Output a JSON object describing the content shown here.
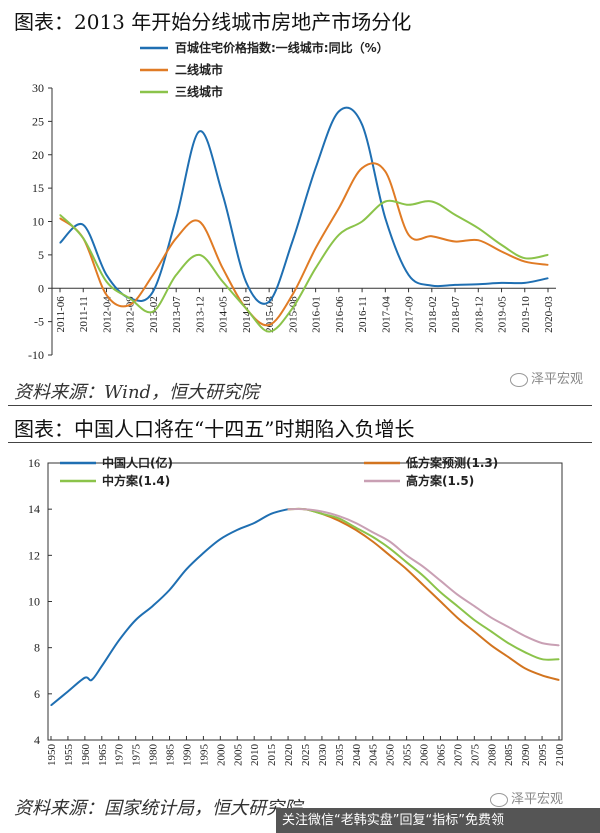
{
  "chart_data": [
    {
      "type": "line",
      "title": "图表：2013 年开始分线城市房地产市场分化",
      "xlabel": "",
      "ylabel": "",
      "ylim": [
        -10,
        30
      ],
      "yticks": [
        -10,
        -5,
        0,
        5,
        10,
        15,
        20,
        25,
        30
      ],
      "legend_position": "top-center",
      "x": [
        "2011-06",
        "2011-11",
        "2012-04",
        "2012-09",
        "2013-02",
        "2013-07",
        "2013-12",
        "2014-05",
        "2014-10",
        "2015-03",
        "2015-08",
        "2016-01",
        "2016-06",
        "2016-11",
        "2017-04",
        "2017-09",
        "2018-02",
        "2018-07",
        "2018-12",
        "2019-05",
        "2019-10",
        "2020-03"
      ],
      "series": [
        {
          "name": "百城住宅价格指数:一线城市:同比（%）",
          "color": "#1f6fb2",
          "values": [
            6.8,
            9.5,
            2.0,
            -1.5,
            -0.5,
            10.5,
            23.5,
            14.0,
            1.0,
            -2.0,
            7.0,
            18.0,
            26.5,
            24.5,
            10.5,
            2.0,
            0.4,
            0.5,
            0.6,
            0.8,
            0.8,
            1.5
          ]
        },
        {
          "name": "二线城市",
          "color": "#e07b25",
          "values": [
            10.5,
            7.5,
            -1.0,
            -2.5,
            2.0,
            7.5,
            10.0,
            3.0,
            -3.0,
            -5.5,
            -1.0,
            6.0,
            12.0,
            18.0,
            17.5,
            8.0,
            7.8,
            7.0,
            7.2,
            5.5,
            4.0,
            3.5
          ]
        },
        {
          "name": "三线城市",
          "color": "#8bc34a",
          "values": [
            11.0,
            7.5,
            1.0,
            -1.5,
            -3.5,
            2.0,
            5.0,
            1.0,
            -3.0,
            -6.5,
            -3.0,
            3.0,
            8.0,
            10.0,
            13.0,
            12.5,
            13.0,
            11.0,
            9.0,
            6.5,
            4.5,
            5.0
          ]
        }
      ]
    },
    {
      "type": "line",
      "title": "图表：中国人口将在“十四五”时期陷入负增长",
      "xlabel": "",
      "ylabel": "",
      "ylim": [
        4,
        16
      ],
      "yticks": [
        4,
        6,
        8,
        10,
        12,
        14,
        16
      ],
      "xlim": [
        1950,
        2100
      ],
      "xticks": [
        1950,
        1955,
        1960,
        1965,
        1970,
        1975,
        1980,
        1985,
        1990,
        1995,
        2000,
        2005,
        2010,
        2015,
        2020,
        2025,
        2030,
        2035,
        2040,
        2045,
        2050,
        2055,
        2060,
        2065,
        2070,
        2075,
        2080,
        2085,
        2090,
        2095,
        2100
      ],
      "legend_position": "top",
      "series": [
        {
          "name": "中国人口(亿)",
          "color": "#1f6fb2",
          "x": [
            1950,
            1955,
            1960,
            1962,
            1965,
            1970,
            1975,
            1980,
            1985,
            1990,
            1995,
            2000,
            2005,
            2010,
            2015,
            2020
          ],
          "values": [
            5.5,
            6.1,
            6.7,
            6.6,
            7.2,
            8.3,
            9.2,
            9.8,
            10.5,
            11.4,
            12.1,
            12.7,
            13.1,
            13.4,
            13.8,
            14.0
          ]
        },
        {
          "name": "低方案预测(1.3)",
          "color": "#d2741f",
          "x": [
            2020,
            2025,
            2030,
            2035,
            2040,
            2045,
            2050,
            2055,
            2060,
            2065,
            2070,
            2075,
            2080,
            2085,
            2090,
            2095,
            2100
          ],
          "values": [
            14.0,
            14.0,
            13.8,
            13.5,
            13.1,
            12.6,
            12.0,
            11.4,
            10.7,
            10.0,
            9.3,
            8.7,
            8.1,
            7.6,
            7.1,
            6.8,
            6.6
          ]
        },
        {
          "name": "中方案(1.4)",
          "color": "#8bc34a",
          "x": [
            2020,
            2025,
            2030,
            2035,
            2040,
            2045,
            2050,
            2055,
            2060,
            2065,
            2070,
            2075,
            2080,
            2085,
            2090,
            2095,
            2100
          ],
          "values": [
            14.0,
            14.0,
            13.8,
            13.6,
            13.2,
            12.8,
            12.3,
            11.7,
            11.1,
            10.4,
            9.8,
            9.2,
            8.7,
            8.2,
            7.8,
            7.5,
            7.5
          ]
        },
        {
          "name": "高方案(1.5)",
          "color": "#c9a0b4",
          "x": [
            2020,
            2025,
            2030,
            2035,
            2040,
            2045,
            2050,
            2055,
            2060,
            2065,
            2070,
            2075,
            2080,
            2085,
            2090,
            2095,
            2100
          ],
          "values": [
            14.0,
            14.0,
            13.9,
            13.7,
            13.4,
            13.0,
            12.6,
            12.0,
            11.5,
            10.9,
            10.3,
            9.8,
            9.3,
            8.9,
            8.5,
            8.2,
            8.1
          ]
        }
      ]
    }
  ],
  "sources": [
    "资料来源：Wind，恒大研究院",
    "资料来源：国家统计局，恒大研究院"
  ],
  "watermark": "泽平宏观",
  "footer_banner": "关注微信“老韩实盘”回复“指标”免费领"
}
